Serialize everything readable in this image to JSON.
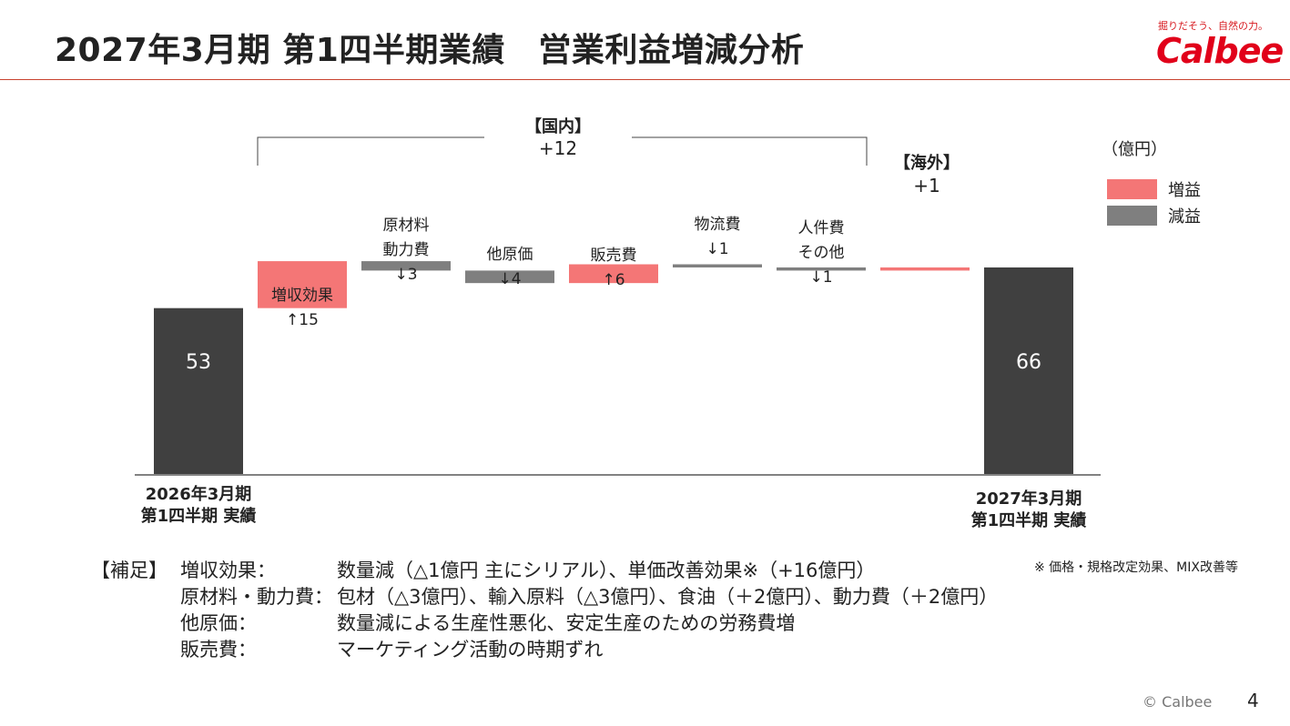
{
  "header": {
    "title": "2027年3月期 第1四半期業績　営業利益増減分析",
    "logo_tagline": "掘りだそう、自然の力。",
    "logo_word": "Calbee"
  },
  "unit_label": "（億円）",
  "legend": [
    {
      "label": "増益",
      "color": "#f47676"
    },
    {
      "label": "減益",
      "color": "#7f7f7f"
    }
  ],
  "colors": {
    "total": "#404040",
    "increase": "#f47676",
    "decrease": "#7f7f7f",
    "axis": "#595959"
  },
  "chart_data": {
    "type": "waterfall",
    "ylim": [
      0,
      78
    ],
    "steps": [
      {
        "label_lines": [
          "2026年3月期",
          "第1四半期 実績"
        ],
        "value": 53,
        "kind": "total",
        "value_text": "53"
      },
      {
        "label_lines": [
          "増収効果",
          "↑15"
        ],
        "value": 15,
        "kind": "increase"
      },
      {
        "label_lines": [
          "原材料",
          "動力費",
          "↓3"
        ],
        "value": -3,
        "kind": "decrease"
      },
      {
        "label_lines": [
          "他原価",
          "↓4"
        ],
        "value": -4,
        "kind": "decrease"
      },
      {
        "label_lines": [
          "販売費",
          "↑6"
        ],
        "value": 6,
        "kind": "increase"
      },
      {
        "label_lines": [
          "物流費",
          "↓1"
        ],
        "value": -1,
        "kind": "decrease"
      },
      {
        "label_lines": [
          "人件費",
          "その他",
          "↓1"
        ],
        "value": -1,
        "kind": "decrease"
      },
      {
        "label_lines": [],
        "value": 1,
        "kind": "increase"
      },
      {
        "label_lines": [
          "2027年3月期",
          "第1四半期 実績"
        ],
        "value": 66,
        "kind": "total",
        "value_text": "66"
      }
    ],
    "groups": [
      {
        "label": "【国内】",
        "value": "+12"
      },
      {
        "label": "【海外】",
        "value": "+1"
      }
    ]
  },
  "notes": {
    "heading": "【補足】",
    "rows": [
      {
        "key": "増収効果：",
        "text": "数量減（△1億円 主にシリアル）、単価改善効果※（+16億円）"
      },
      {
        "key": "原材料・動力費：",
        "text": "包材（△3億円）、輸入原料（△3億円）、食油（＋2億円）、動力費（＋2億円）"
      },
      {
        "key": "他原価：",
        "text": "数量減による生産性悪化、安定生産のための労務費増"
      },
      {
        "key": "販売費：",
        "text": "マーケティング活動の時期ずれ"
      }
    ],
    "footnote": "※ 価格・規格改定効果、MIX改善等"
  },
  "footer": {
    "copyright": "© Calbee",
    "page": "4"
  }
}
